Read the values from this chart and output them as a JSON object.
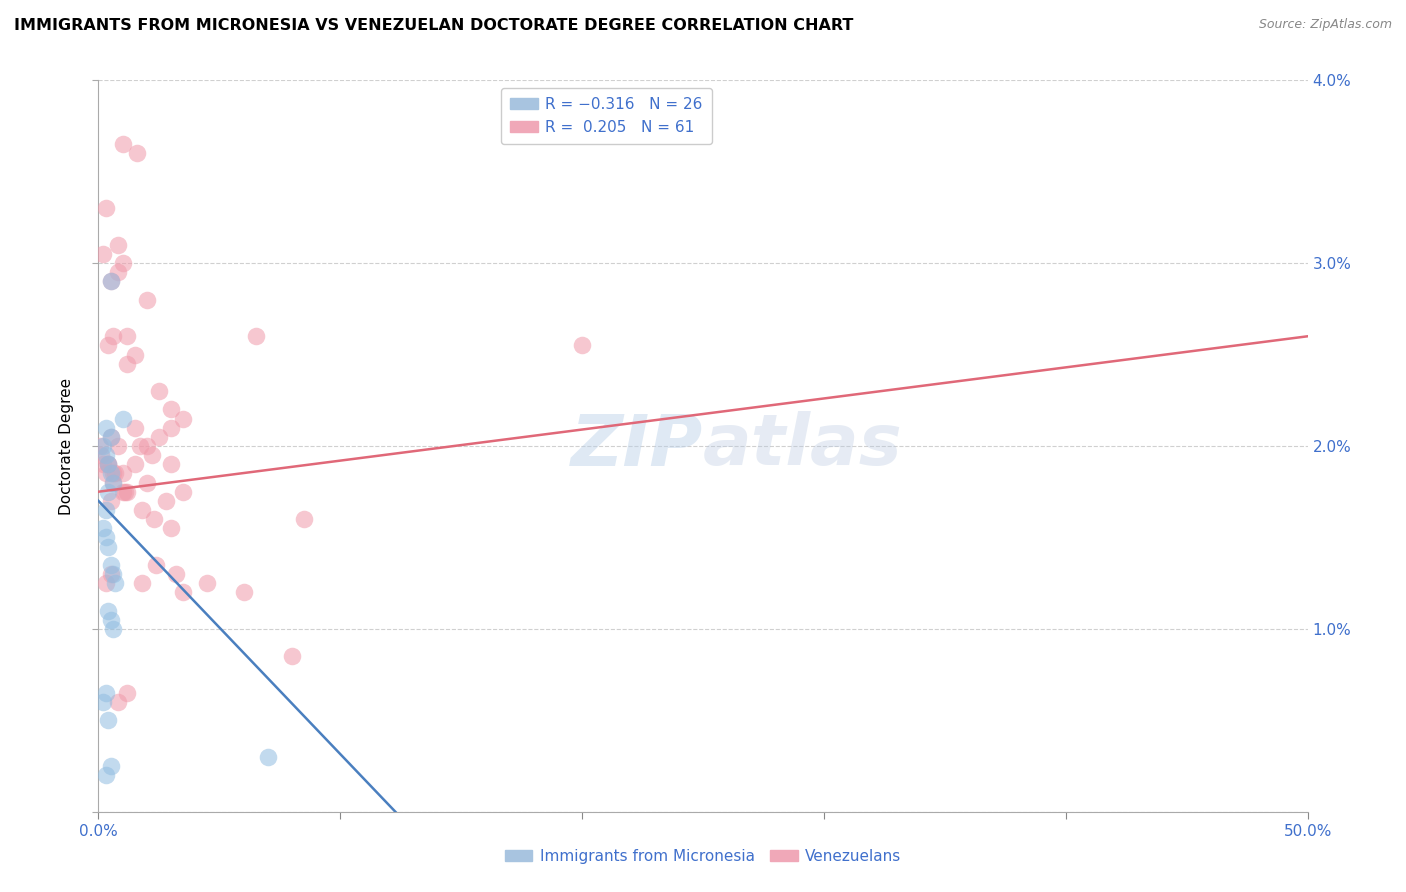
{
  "title": "IMMIGRANTS FROM MICRONESIA VS VENEZUELAN DOCTORATE DEGREE CORRELATION CHART",
  "source": "Source: ZipAtlas.com",
  "ylabel": "Doctorate Degree",
  "xlim": [
    0.0,
    50.0
  ],
  "ylim": [
    0.0,
    4.0
  ],
  "watermark": "ZIPatlas",
  "blue_scatter_x": [
    0.5,
    1.0,
    0.3,
    0.5,
    0.2,
    0.3,
    0.4,
    0.5,
    0.6,
    0.4,
    0.3,
    0.2,
    0.3,
    0.4,
    0.5,
    0.6,
    0.7,
    0.4,
    0.5,
    0.6,
    0.3,
    0.2,
    0.4,
    7.0,
    0.5,
    0.3
  ],
  "blue_scatter_y": [
    2.9,
    2.15,
    2.1,
    2.05,
    2.0,
    1.95,
    1.9,
    1.85,
    1.8,
    1.75,
    1.65,
    1.55,
    1.5,
    1.45,
    1.35,
    1.3,
    1.25,
    1.1,
    1.05,
    1.0,
    0.65,
    0.6,
    0.5,
    0.3,
    0.25,
    0.2
  ],
  "pink_scatter_x": [
    0.05,
    0.1,
    0.2,
    0.3,
    0.4,
    0.5,
    0.6,
    0.8,
    1.0,
    1.2,
    1.5,
    2.0,
    2.5,
    3.0,
    3.5,
    0.2,
    0.4,
    0.6,
    0.8,
    1.0,
    1.2,
    1.5,
    2.0,
    2.5,
    3.0,
    3.5,
    0.3,
    0.5,
    0.8,
    1.2,
    1.8,
    2.3,
    3.0,
    0.5,
    1.0,
    1.5,
    2.0,
    2.8,
    3.5,
    0.4,
    0.7,
    1.1,
    1.7,
    2.2,
    3.0,
    0.6,
    1.0,
    1.6,
    20.0,
    0.3,
    0.5,
    0.8,
    1.2,
    1.8,
    2.4,
    3.2,
    4.5,
    6.0,
    6.5,
    8.0,
    8.5
  ],
  "pink_scatter_y": [
    2.0,
    1.95,
    1.9,
    1.85,
    1.9,
    2.05,
    1.8,
    2.0,
    1.85,
    1.75,
    2.1,
    2.0,
    2.05,
    2.1,
    1.75,
    3.05,
    2.55,
    2.6,
    2.95,
    3.0,
    2.45,
    2.5,
    2.8,
    2.3,
    2.2,
    2.15,
    3.3,
    2.9,
    3.1,
    2.6,
    1.65,
    1.6,
    1.55,
    1.7,
    1.75,
    1.9,
    1.8,
    1.7,
    1.2,
    1.9,
    1.85,
    1.75,
    2.0,
    1.95,
    1.9,
    1.85,
    3.65,
    3.6,
    2.55,
    1.25,
    1.3,
    0.6,
    0.65,
    1.25,
    1.35,
    1.3,
    1.25,
    1.2,
    2.6,
    0.85,
    1.6
  ],
  "blue_line_x": [
    0.0,
    13.0
  ],
  "blue_line_y": [
    1.7,
    -0.1
  ],
  "pink_line_x": [
    0.0,
    50.0
  ],
  "pink_line_y": [
    1.75,
    2.6
  ],
  "blue_color": "#90bce0",
  "pink_color": "#f09aaa",
  "blue_line_color": "#4a7fbf",
  "pink_line_color": "#e06878",
  "background_color": "#ffffff",
  "grid_color": "#d0d0d0",
  "title_fontsize": 11.5,
  "tick_label_color": "#4070cc",
  "axis_label_color": "#4070cc"
}
